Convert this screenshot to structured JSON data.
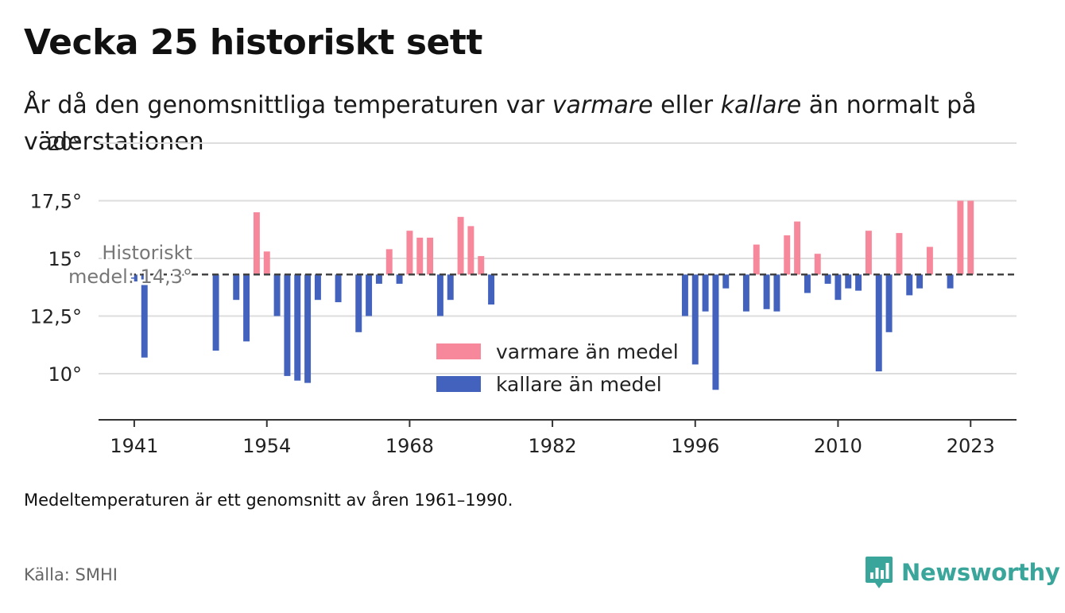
{
  "header": {
    "title": "Vecka 25 historiskt sett",
    "subtitle_parts": [
      "År då den genomsnittliga temperaturen var ",
      "varmare",
      " eller ",
      "kallare",
      " än normalt på väderstationen"
    ]
  },
  "footnote": "Medeltemperaturen är ett genomsnitt av åren 1961–1990.",
  "source": "Källa: SMHI",
  "logo": {
    "text": "Newsworthy",
    "color": "#3aa59a"
  },
  "colors": {
    "warm": "#f7879b",
    "cold": "#4262bd",
    "grid": "#dddddd",
    "axis": "#333333",
    "mean_line": "#444444"
  },
  "chart_data": {
    "type": "bar",
    "baseline": 14.3,
    "baseline_label_lines": [
      "Historiskt",
      "medel: 14,3°"
    ],
    "ylim": [
      8,
      20
    ],
    "yticks": [
      10,
      12.5,
      15,
      17.5,
      20
    ],
    "ytick_labels": [
      "10°",
      "12,5°",
      "15°",
      "17,5°",
      "20°"
    ],
    "xlim": [
      1937.5,
      2027.5
    ],
    "xticks": [
      1941,
      1954,
      1968,
      1982,
      1996,
      2010,
      2023
    ],
    "xtick_labels": [
      "1941",
      "1954",
      "1968",
      "1982",
      "1996",
      "2010",
      "2023"
    ],
    "legend": {
      "position": "center",
      "warm": "varmare än medel",
      "cold": "kallare än medel"
    },
    "series": [
      {
        "x": 1941,
        "value": 14.0
      },
      {
        "x": 1942,
        "value": 10.7
      },
      {
        "x": 1949,
        "value": 11.0
      },
      {
        "x": 1951,
        "value": 13.2
      },
      {
        "x": 1952,
        "value": 11.4
      },
      {
        "x": 1953,
        "value": 17.0
      },
      {
        "x": 1954,
        "value": 15.3
      },
      {
        "x": 1955,
        "value": 12.5
      },
      {
        "x": 1956,
        "value": 9.9
      },
      {
        "x": 1957,
        "value": 9.7
      },
      {
        "x": 1958,
        "value": 9.6
      },
      {
        "x": 1959,
        "value": 13.2
      },
      {
        "x": 1961,
        "value": 13.1
      },
      {
        "x": 1963,
        "value": 11.8
      },
      {
        "x": 1964,
        "value": 12.5
      },
      {
        "x": 1965,
        "value": 13.9
      },
      {
        "x": 1966,
        "value": 15.4
      },
      {
        "x": 1967,
        "value": 13.9
      },
      {
        "x": 1968,
        "value": 16.2
      },
      {
        "x": 1969,
        "value": 15.9
      },
      {
        "x": 1970,
        "value": 15.9
      },
      {
        "x": 1971,
        "value": 12.5
      },
      {
        "x": 1972,
        "value": 13.2
      },
      {
        "x": 1973,
        "value": 16.8
      },
      {
        "x": 1974,
        "value": 16.4
      },
      {
        "x": 1975,
        "value": 15.1
      },
      {
        "x": 1976,
        "value": 13.0
      },
      {
        "x": 1995,
        "value": 12.5
      },
      {
        "x": 1996,
        "value": 10.4
      },
      {
        "x": 1997,
        "value": 12.7
      },
      {
        "x": 1998,
        "value": 9.3
      },
      {
        "x": 1999,
        "value": 13.7
      },
      {
        "x": 2001,
        "value": 12.7
      },
      {
        "x": 2002,
        "value": 15.6
      },
      {
        "x": 2003,
        "value": 12.8
      },
      {
        "x": 2004,
        "value": 12.7
      },
      {
        "x": 2005,
        "value": 16.0
      },
      {
        "x": 2006,
        "value": 16.6
      },
      {
        "x": 2007,
        "value": 13.5
      },
      {
        "x": 2008,
        "value": 15.2
      },
      {
        "x": 2009,
        "value": 13.9
      },
      {
        "x": 2010,
        "value": 13.2
      },
      {
        "x": 2011,
        "value": 13.7
      },
      {
        "x": 2012,
        "value": 13.6
      },
      {
        "x": 2013,
        "value": 16.2
      },
      {
        "x": 2014,
        "value": 10.1
      },
      {
        "x": 2015,
        "value": 11.8
      },
      {
        "x": 2016,
        "value": 16.1
      },
      {
        "x": 2017,
        "value": 13.4
      },
      {
        "x": 2018,
        "value": 13.7
      },
      {
        "x": 2019,
        "value": 15.5
      },
      {
        "x": 2021,
        "value": 13.7
      },
      {
        "x": 2022,
        "value": 17.5
      },
      {
        "x": 2023,
        "value": 17.5
      }
    ]
  }
}
